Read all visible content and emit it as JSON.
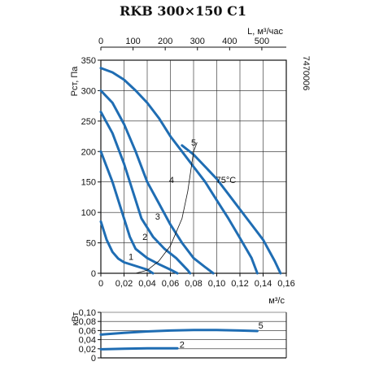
{
  "title": "RKB 300×150 C1",
  "side_code": "7470006",
  "chart_data": [
    {
      "type": "line",
      "name": "pressure",
      "xlabel": "м³/с",
      "ylabel": "Pст, Па",
      "top_axis_label": "L, м³/час",
      "xlim": [
        0,
        0.16
      ],
      "ylim": [
        0,
        350
      ],
      "xlim_top": [
        0,
        576
      ],
      "x_ticks": [
        "0",
        "0,02",
        "0,04",
        "0,06",
        "0,08",
        "0,10",
        "0,12",
        "0,14",
        "0,16"
      ],
      "y_ticks": [
        "0",
        "50",
        "100",
        "150",
        "200",
        "250",
        "300",
        "350"
      ],
      "top_ticks": [
        "0",
        "100",
        "200",
        "300",
        "400",
        "500"
      ],
      "top_tick_values": [
        0,
        100,
        200,
        300,
        400,
        500
      ],
      "grid": true,
      "series": [
        {
          "name": "1",
          "points": [
            [
              0,
              85
            ],
            [
              0.005,
              55
            ],
            [
              0.01,
              35
            ],
            [
              0.015,
              24
            ],
            [
              0.02,
              18
            ],
            [
              0.03,
              12
            ],
            [
              0.04,
              6
            ],
            [
              0.045,
              0
            ]
          ]
        },
        {
          "name": "2",
          "points": [
            [
              0,
              200
            ],
            [
              0.01,
              150
            ],
            [
              0.02,
              90
            ],
            [
              0.025,
              60
            ],
            [
              0.03,
              40
            ],
            [
              0.04,
              25
            ],
            [
              0.05,
              15
            ],
            [
              0.06,
              6
            ],
            [
              0.066,
              0
            ]
          ]
        },
        {
          "name": "3",
          "points": [
            [
              0,
              265
            ],
            [
              0.01,
              230
            ],
            [
              0.02,
              180
            ],
            [
              0.03,
              120
            ],
            [
              0.035,
              90
            ],
            [
              0.045,
              60
            ],
            [
              0.055,
              40
            ],
            [
              0.065,
              25
            ],
            [
              0.075,
              5
            ],
            [
              0.077,
              0
            ]
          ]
        },
        {
          "name": "4",
          "points": [
            [
              0,
              300
            ],
            [
              0.01,
              280
            ],
            [
              0.02,
              245
            ],
            [
              0.03,
              200
            ],
            [
              0.04,
              150
            ],
            [
              0.05,
              115
            ],
            [
              0.06,
              80
            ],
            [
              0.07,
              50
            ],
            [
              0.08,
              25
            ],
            [
              0.09,
              10
            ],
            [
              0.097,
              0
            ]
          ]
        },
        {
          "name": "5",
          "points": [
            [
              0,
              337
            ],
            [
              0.01,
              330
            ],
            [
              0.02,
              318
            ],
            [
              0.03,
              300
            ],
            [
              0.04,
              280
            ],
            [
              0.05,
              255
            ],
            [
              0.06,
              225
            ],
            [
              0.07,
              200
            ],
            [
              0.08,
              175
            ],
            [
              0.09,
              150
            ],
            [
              0.1,
              120
            ],
            [
              0.11,
              90
            ],
            [
              0.12,
              58
            ],
            [
              0.13,
              25
            ],
            [
              0.135,
              0
            ]
          ]
        },
        {
          "name": "75°C",
          "points": [
            [
              0.07,
              210
            ],
            [
              0.08,
              195
            ],
            [
              0.09,
              175
            ],
            [
              0.1,
              155
            ],
            [
              0.11,
              130
            ],
            [
              0.12,
              105
            ],
            [
              0.13,
              80
            ],
            [
              0.14,
              55
            ],
            [
              0.15,
              20
            ],
            [
              0.155,
              0
            ]
          ]
        }
      ],
      "system_curve": [
        [
          0.03,
          0
        ],
        [
          0.04,
          5
        ],
        [
          0.05,
          20
        ],
        [
          0.06,
          45
        ],
        [
          0.07,
          90
        ],
        [
          0.075,
          135
        ],
        [
          0.08,
          200
        ],
        [
          0.083,
          215
        ]
      ],
      "curve_labels": [
        {
          "text": "1",
          "x": 0.026,
          "y": 22
        },
        {
          "text": "2",
          "x": 0.038,
          "y": 55
        },
        {
          "text": "3",
          "x": 0.049,
          "y": 88
        },
        {
          "text": "4",
          "x": 0.061,
          "y": 148
        },
        {
          "text": "5",
          "x": 0.08,
          "y": 210
        },
        {
          "text": "75°C",
          "x": 0.108,
          "y": 148
        }
      ]
    },
    {
      "type": "line",
      "name": "power",
      "ylabel": "кВт",
      "xlim": [
        0,
        0.16
      ],
      "ylim": [
        0,
        0.1
      ],
      "y_ticks": [
        "0",
        "0,02",
        "0,04",
        "0,06",
        "0,08",
        "0,10"
      ],
      "grid": true,
      "series": [
        {
          "name": "5",
          "points": [
            [
              0,
              0.051
            ],
            [
              0.02,
              0.055
            ],
            [
              0.04,
              0.058
            ],
            [
              0.06,
              0.06
            ],
            [
              0.08,
              0.061
            ],
            [
              0.1,
              0.061
            ],
            [
              0.12,
              0.06
            ],
            [
              0.135,
              0.059
            ]
          ]
        },
        {
          "name": "2",
          "points": [
            [
              0,
              0.019
            ],
            [
              0.02,
              0.02
            ],
            [
              0.04,
              0.021
            ],
            [
              0.06,
              0.021
            ],
            [
              0.066,
              0.021
            ]
          ]
        }
      ],
      "curve_labels": [
        {
          "text": "5",
          "x": 0.138,
          "y": 0.064
        },
        {
          "text": "2",
          "x": 0.07,
          "y": 0.022
        }
      ]
    }
  ]
}
